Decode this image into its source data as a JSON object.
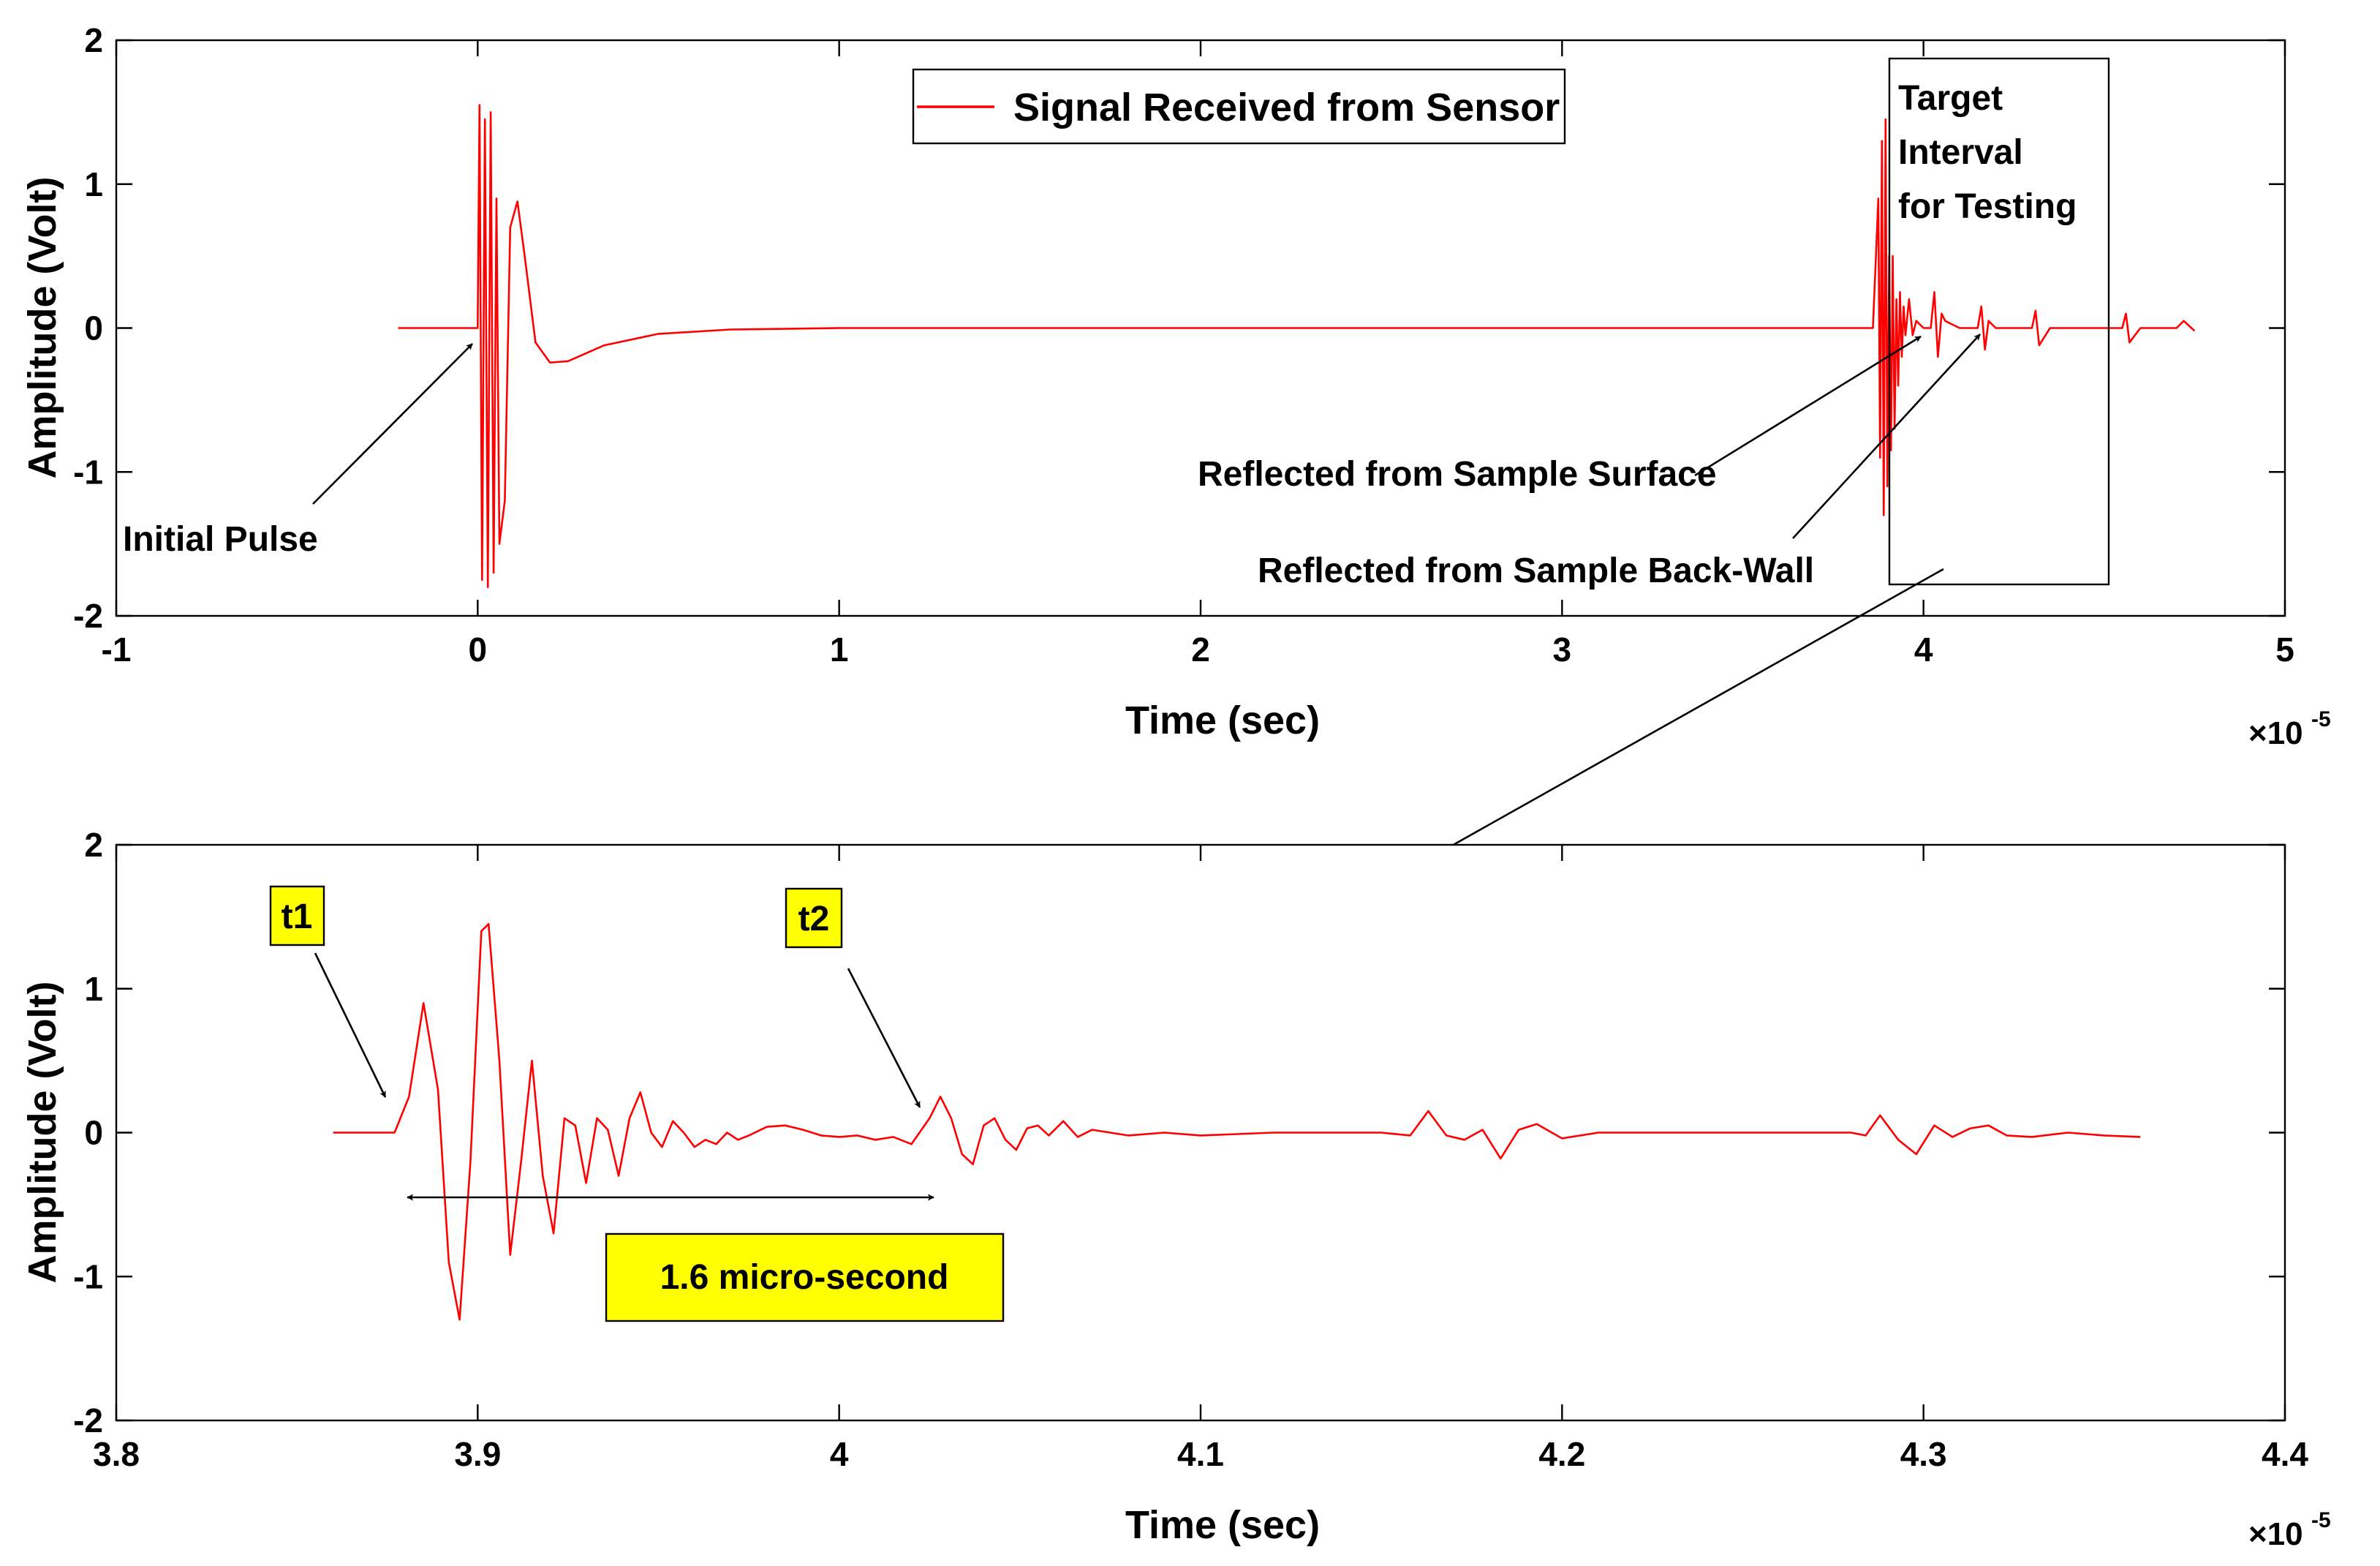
{
  "chart_data": [
    {
      "type": "line",
      "panel": "top",
      "xlabel": "Time (sec)",
      "ylabel": "Amplitude (Volt)",
      "x_exponent": "-5",
      "xlim": [
        -1,
        5
      ],
      "ylim": [
        -2,
        2
      ],
      "xticks": [
        "-1",
        "0",
        "1",
        "2",
        "3",
        "4",
        "5"
      ],
      "yticks": [
        "2",
        "1",
        "0",
        "-1",
        "-2"
      ],
      "grid": false,
      "legend": {
        "placement": "top-center",
        "entries": [
          "Signal Received from Sensor"
        ]
      },
      "series": [
        {
          "name": "Signal Received from Sensor",
          "color": "#ff0000",
          "x": [
            -0.22,
            0.0,
            0.005,
            0.012,
            0.02,
            0.028,
            0.036,
            0.044,
            0.052,
            0.06,
            0.075,
            0.09,
            0.11,
            0.13,
            0.16,
            0.2,
            0.25,
            0.35,
            0.5,
            0.7,
            1.0,
            1.5,
            2.0,
            2.5,
            3.0,
            3.5,
            3.85,
            3.86,
            3.875,
            3.88,
            3.885,
            3.89,
            3.895,
            3.9,
            3.905,
            3.91,
            3.915,
            3.92,
            3.925,
            3.93,
            3.935,
            3.94,
            3.945,
            3.95,
            3.96,
            3.97,
            3.98,
            4.0,
            4.02,
            4.03,
            4.04,
            4.05,
            4.06,
            4.1,
            4.15,
            4.16,
            4.17,
            4.18,
            4.2,
            4.25,
            4.3,
            4.31,
            4.32,
            4.35,
            4.4,
            4.45,
            4.5,
            4.55,
            4.56,
            4.57,
            4.6,
            4.65,
            4.7,
            4.72,
            4.75
          ],
          "y": [
            0.0,
            0.0,
            1.55,
            -1.75,
            1.45,
            -1.8,
            1.5,
            -1.7,
            0.9,
            -1.5,
            -1.2,
            0.7,
            0.88,
            0.5,
            -0.1,
            -0.24,
            -0.23,
            -0.12,
            -0.04,
            -0.01,
            0.0,
            0.0,
            0.0,
            0.0,
            0.0,
            0.0,
            0.0,
            0.0,
            0.9,
            -0.9,
            1.3,
            -1.3,
            1.45,
            -1.1,
            0.5,
            -0.85,
            0.5,
            -0.7,
            0.2,
            -0.4,
            0.25,
            -0.2,
            0.15,
            -0.05,
            0.2,
            -0.05,
            0.05,
            0.0,
            0.0,
            0.25,
            -0.2,
            0.1,
            0.05,
            0.0,
            0.0,
            0.15,
            -0.15,
            0.05,
            0.0,
            0.0,
            0.0,
            0.12,
            -0.12,
            0.0,
            0.0,
            0.0,
            0.0,
            0.0,
            0.1,
            -0.1,
            0.0,
            0.0,
            0.0,
            0.05,
            -0.02
          ]
        }
      ],
      "annotations": [
        {
          "text": "Initial Pulse"
        },
        {
          "text": "Reflected from Sample Surface"
        },
        {
          "text": "Reflected from Sample Back-Wall"
        },
        {
          "text": "Target Interval for Testing",
          "lines": [
            "Target",
            "Interval",
            "for Testing"
          ]
        }
      ]
    },
    {
      "type": "line",
      "panel": "bottom",
      "xlabel": "Time (sec)",
      "ylabel": "Amplitude (Volt)",
      "x_exponent": "-5",
      "xlim": [
        3.8,
        4.4
      ],
      "ylim": [
        -2,
        2
      ],
      "xticks": [
        "3.8",
        "3.9",
        "4",
        "4.1",
        "4.2",
        "4.3",
        "4.4"
      ],
      "yticks": [
        "2",
        "1",
        "0",
        "-1",
        "-2"
      ],
      "grid": false,
      "series": [
        {
          "color": "#ff0000",
          "x": [
            3.86,
            3.877,
            3.881,
            3.885,
            3.889,
            3.892,
            3.895,
            3.898,
            3.901,
            3.903,
            3.906,
            3.909,
            3.912,
            3.915,
            3.918,
            3.921,
            3.924,
            3.927,
            3.93,
            3.933,
            3.936,
            3.939,
            3.942,
            3.945,
            3.948,
            3.951,
            3.954,
            3.957,
            3.96,
            3.963,
            3.966,
            3.969,
            3.972,
            3.975,
            3.98,
            3.985,
            3.99,
            3.995,
            4.0,
            4.005,
            4.01,
            4.015,
            4.02,
            4.025,
            4.028,
            4.031,
            4.034,
            4.037,
            4.04,
            4.043,
            4.046,
            4.049,
            4.052,
            4.055,
            4.058,
            4.062,
            4.066,
            4.07,
            4.075,
            4.08,
            4.09,
            4.1,
            4.11,
            4.12,
            4.13,
            4.14,
            4.15,
            4.158,
            4.163,
            4.168,
            4.173,
            4.178,
            4.183,
            4.188,
            4.193,
            4.2,
            4.21,
            4.22,
            4.23,
            4.24,
            4.25,
            4.26,
            4.27,
            4.28,
            4.284,
            4.288,
            4.293,
            4.298,
            4.303,
            4.308,
            4.313,
            4.318,
            4.323,
            4.33,
            4.34,
            4.35,
            4.36
          ],
          "y": [
            0.0,
            0.0,
            0.25,
            0.9,
            0.3,
            -0.9,
            -1.3,
            -0.2,
            1.4,
            1.45,
            0.5,
            -0.85,
            -0.2,
            0.5,
            -0.3,
            -0.7,
            0.1,
            0.05,
            -0.35,
            0.1,
            0.02,
            -0.3,
            0.1,
            0.28,
            0.0,
            -0.1,
            0.08,
            0.0,
            -0.1,
            -0.05,
            -0.08,
            0.0,
            -0.05,
            -0.02,
            0.04,
            0.05,
            0.02,
            -0.02,
            -0.03,
            -0.02,
            -0.05,
            -0.03,
            -0.08,
            0.1,
            0.25,
            0.1,
            -0.15,
            -0.22,
            0.05,
            0.1,
            -0.05,
            -0.12,
            0.03,
            0.05,
            -0.02,
            0.08,
            -0.03,
            0.02,
            0.0,
            -0.02,
            0.0,
            -0.02,
            -0.01,
            0.0,
            0.0,
            0.0,
            0.0,
            -0.02,
            0.15,
            -0.02,
            -0.05,
            0.02,
            -0.18,
            0.02,
            0.06,
            -0.04,
            0.0,
            0.0,
            0.0,
            0.0,
            0.0,
            0.0,
            0.0,
            0.0,
            -0.02,
            0.12,
            -0.05,
            -0.15,
            0.05,
            -0.03,
            0.03,
            0.05,
            -0.02,
            -0.03,
            0.0,
            -0.02,
            -0.03
          ]
        }
      ],
      "annotations": [
        {
          "text": "t1"
        },
        {
          "text": "t2"
        },
        {
          "text": "1.6 micro-second"
        }
      ]
    }
  ],
  "colors": {
    "signal": "#ff0000",
    "highlight": "#ffff00",
    "axes": "#000000"
  }
}
